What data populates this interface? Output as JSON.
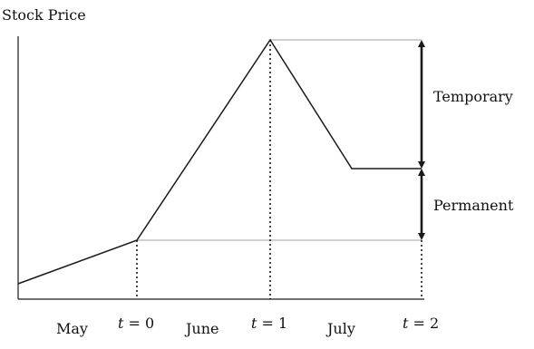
{
  "title": "Stock Price",
  "x_labels": {
    "may": "May",
    "t0_var": "t",
    "t0_rest": " = 0",
    "june": "June",
    "t1_var": "t",
    "t1_rest": " = 1",
    "july": "July",
    "t2_var": "t",
    "t2_rest": " = 2"
  },
  "annotations": {
    "temporary": "Temporary",
    "permanent": "Permanent"
  },
  "colors": {
    "line": "#1a1a1a",
    "guide": "#b3b3b3",
    "axis": "#1a1a1a"
  }
}
